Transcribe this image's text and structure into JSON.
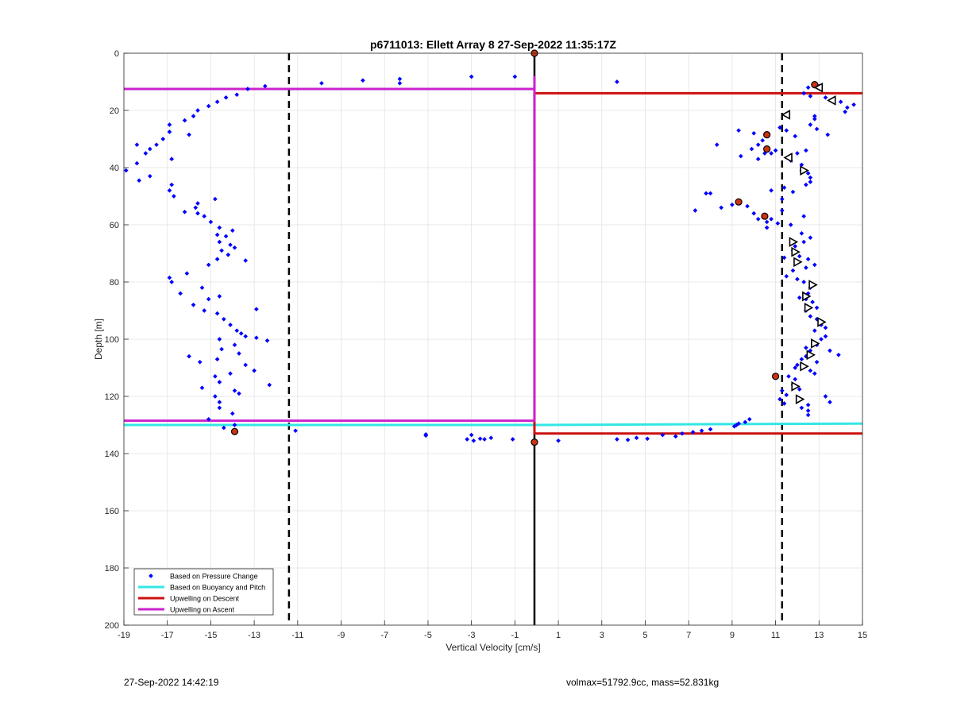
{
  "chart_data": {
    "type": "scatter",
    "title": "p6711013: Ellett Array 8 27-Sep-2022 11:35:17Z",
    "xlabel": "Vertical Velocity [cm/s]",
    "ylabel": "Depth [m]",
    "xlim": [
      -19,
      15
    ],
    "ylim": [
      0,
      200
    ],
    "y_reversed": true,
    "grid": true,
    "xticks": [
      -19,
      -17,
      -15,
      -13,
      -11,
      -9,
      -7,
      -5,
      -3,
      -1,
      1,
      3,
      5,
      7,
      9,
      11,
      13,
      15
    ],
    "yticks": [
      0,
      20,
      40,
      60,
      80,
      100,
      120,
      140,
      160,
      180,
      200
    ],
    "legend_position": "bottom-left",
    "colors": {
      "pressure": "#0000ff",
      "buoyancy": "#33e6e6",
      "descent": "#cc1111",
      "ascent": "#cc22cc",
      "reference": "#000000",
      "marker_fill": "#cc3311"
    },
    "legend": [
      {
        "label": "Based on Pressure Change",
        "style": "dot",
        "color": "#0000ff"
      },
      {
        "label": "Based on Buoyancy and Pitch",
        "style": "line",
        "color": "#33e6e6"
      },
      {
        "label": "Upwelling on Descent",
        "style": "line",
        "color": "#cc1111"
      },
      {
        "label": "Upwelling on Ascent",
        "style": "line",
        "color": "#cc22cc"
      }
    ],
    "reference_lines": [
      {
        "name": "center",
        "x": -0.1,
        "style": "solid"
      },
      {
        "name": "lower-bound",
        "x": -11.4,
        "style": "dashed"
      },
      {
        "name": "upper-bound",
        "x": 11.3,
        "style": "dashed"
      }
    ],
    "upwelling_ascent_path": [
      [
        -19,
        12.5
      ],
      [
        -0.1,
        12.5
      ],
      [
        -0.1,
        8
      ],
      [
        -0.1,
        14
      ],
      [
        -0.1,
        128.5
      ],
      [
        -19,
        128.5
      ]
    ],
    "upwelling_descent_path": [
      [
        -0.1,
        14
      ],
      [
        15,
        14
      ],
      [
        -0.1,
        14
      ],
      [
        -0.1,
        133
      ],
      [
        15,
        133
      ]
    ],
    "buoyancy_line": [
      [
        -19,
        130
      ],
      [
        -0.1,
        130
      ],
      [
        15,
        129.5
      ]
    ],
    "pressure_points": [
      [
        -12.5,
        11.5
      ],
      [
        -9.9,
        10.5
      ],
      [
        -8,
        9.5
      ],
      [
        -6.3,
        9
      ],
      [
        -6.3,
        10.5
      ],
      [
        -3,
        8.2
      ],
      [
        -1,
        8.2
      ],
      [
        3.7,
        10
      ],
      [
        -13.3,
        12.5
      ],
      [
        -14.3,
        15.5
      ],
      [
        -13.8,
        14.5
      ],
      [
        -14.7,
        17
      ],
      [
        -15.1,
        18.5
      ],
      [
        -15.6,
        20
      ],
      [
        -15.8,
        22
      ],
      [
        -16.2,
        23.5
      ],
      [
        -16,
        28.5
      ],
      [
        -16.9,
        25
      ],
      [
        -16.9,
        27.5
      ],
      [
        -17.2,
        30
      ],
      [
        -17.5,
        32
      ],
      [
        -17.8,
        33.5
      ],
      [
        -18,
        35
      ],
      [
        -18.4,
        32
      ],
      [
        -18.4,
        38.5
      ],
      [
        -16.8,
        37
      ],
      [
        -18.9,
        41
      ],
      [
        -17.8,
        43
      ],
      [
        -18.3,
        44.5
      ],
      [
        -16.8,
        46
      ],
      [
        -16.9,
        48
      ],
      [
        -16.7,
        50
      ],
      [
        -16.2,
        55.5
      ],
      [
        -15.6,
        52.5
      ],
      [
        -15.7,
        54
      ],
      [
        -14.8,
        51
      ],
      [
        -15.6,
        56
      ],
      [
        -15.3,
        57
      ],
      [
        -15.0,
        59
      ],
      [
        -14.6,
        61
      ],
      [
        -14.0,
        62
      ],
      [
        -14.7,
        63.5
      ],
      [
        -14.3,
        64
      ],
      [
        -14.6,
        66
      ],
      [
        -14.1,
        67
      ],
      [
        -13.9,
        68
      ],
      [
        -14.5,
        69
      ],
      [
        -14.2,
        70.5
      ],
      [
        -14.7,
        72
      ],
      [
        -13.4,
        72.5
      ],
      [
        -15.1,
        74
      ],
      [
        -16.1,
        77
      ],
      [
        -16.9,
        78.5
      ],
      [
        -16.8,
        80
      ],
      [
        -16.4,
        84
      ],
      [
        -15.4,
        82
      ],
      [
        -15.1,
        86
      ],
      [
        -14.6,
        85
      ],
      [
        -15.8,
        88
      ],
      [
        -15.3,
        90
      ],
      [
        -14.7,
        91
      ],
      [
        -12.9,
        89.5
      ],
      [
        -14.4,
        93
      ],
      [
        -14.1,
        95
      ],
      [
        -13.8,
        97
      ],
      [
        -13.6,
        98
      ],
      [
        -13.4,
        99
      ],
      [
        -14.6,
        100
      ],
      [
        -12.9,
        99.5
      ],
      [
        -12.4,
        100.5
      ],
      [
        -13.9,
        102
      ],
      [
        -14.5,
        103.5
      ],
      [
        -16.0,
        106
      ],
      [
        -15.5,
        108
      ],
      [
        -14.7,
        107
      ],
      [
        -13.7,
        105
      ],
      [
        -13.4,
        109
      ],
      [
        -14.1,
        112
      ],
      [
        -14.8,
        113
      ],
      [
        -13.0,
        111
      ],
      [
        -14.6,
        115
      ],
      [
        -15.4,
        117
      ],
      [
        -13.9,
        118
      ],
      [
        -12.3,
        116
      ],
      [
        -14.8,
        120
      ],
      [
        -13.7,
        119
      ],
      [
        -14.6,
        122
      ],
      [
        -14.6,
        124
      ],
      [
        -14.0,
        126
      ],
      [
        -15.1,
        128
      ],
      [
        -13.9,
        130
      ],
      [
        -14.4,
        131
      ],
      [
        -11.1,
        132
      ],
      [
        -5.1,
        133.3
      ],
      [
        -5.1,
        133.7
      ],
      [
        -3.0,
        133.5
      ],
      [
        -3.2,
        135
      ],
      [
        -2.9,
        135.5
      ],
      [
        -2.6,
        134.8
      ],
      [
        -2.4,
        135
      ],
      [
        -2.1,
        134.5
      ],
      [
        -1.1,
        135
      ],
      [
        1.0,
        135.5
      ],
      [
        3.7,
        135
      ],
      [
        4.2,
        135.2
      ],
      [
        4.6,
        134.5
      ],
      [
        5.1,
        134.8
      ],
      [
        5.8,
        133.5
      ],
      [
        6.4,
        134
      ],
      [
        6.7,
        133
      ],
      [
        7.2,
        132.5
      ],
      [
        7.6,
        132
      ],
      [
        8.0,
        131.5
      ],
      [
        9.1,
        130.5
      ],
      [
        9.3,
        129.5
      ],
      [
        9.6,
        129
      ],
      [
        9.8,
        128
      ],
      [
        9.2,
        130
      ],
      [
        12.8,
        10.5
      ],
      [
        13.0,
        11.5
      ],
      [
        12.5,
        12
      ],
      [
        12.3,
        14
      ],
      [
        12.6,
        15
      ],
      [
        13.3,
        15.5
      ],
      [
        14.0,
        17
      ],
      [
        14.3,
        19
      ],
      [
        14.6,
        18
      ],
      [
        14.2,
        20.5
      ],
      [
        12.8,
        22
      ],
      [
        12.8,
        23
      ],
      [
        12.6,
        25
      ],
      [
        12.9,
        26.5
      ],
      [
        11.2,
        26
      ],
      [
        11.5,
        27
      ],
      [
        9.3,
        27
      ],
      [
        10.0,
        28
      ],
      [
        11.9,
        29
      ],
      [
        13.4,
        28.5
      ],
      [
        8.3,
        32
      ],
      [
        10.4,
        30.5
      ],
      [
        10.2,
        32
      ],
      [
        9.9,
        33.5
      ],
      [
        10.5,
        35
      ],
      [
        10.8,
        35
      ],
      [
        11.0,
        34
      ],
      [
        9.4,
        36
      ],
      [
        10.2,
        37
      ],
      [
        12.0,
        35
      ],
      [
        12.4,
        34
      ],
      [
        11.7,
        37.5
      ],
      [
        12.2,
        39
      ],
      [
        12.2,
        41
      ],
      [
        12.5,
        42
      ],
      [
        12.6,
        43.5
      ],
      [
        12.6,
        45
      ],
      [
        11.4,
        47
      ],
      [
        12.4,
        46
      ],
      [
        10.8,
        48
      ],
      [
        11.8,
        48.5
      ],
      [
        8.0,
        49
      ],
      [
        7.8,
        49
      ],
      [
        7.3,
        55
      ],
      [
        8.5,
        54
      ],
      [
        9.0,
        53
      ],
      [
        9.7,
        53.5
      ],
      [
        10.0,
        56
      ],
      [
        10.2,
        58
      ],
      [
        10.6,
        59
      ],
      [
        10.8,
        58
      ],
      [
        11.1,
        59.5
      ],
      [
        10.6,
        61
      ],
      [
        11.3,
        51
      ],
      [
        11.3,
        55
      ],
      [
        12.3,
        57
      ],
      [
        11.7,
        60
      ],
      [
        12.2,
        63
      ],
      [
        12.6,
        64.5
      ],
      [
        12.3,
        66
      ],
      [
        11.9,
        67.5
      ],
      [
        11.8,
        69
      ],
      [
        11.4,
        71.5
      ],
      [
        12.1,
        71
      ],
      [
        12.5,
        72
      ],
      [
        12.4,
        75
      ],
      [
        12.8,
        74
      ],
      [
        11.8,
        76
      ],
      [
        11.5,
        78
      ],
      [
        12.0,
        79
      ],
      [
        12.3,
        80
      ],
      [
        12.6,
        82
      ],
      [
        12.5,
        84
      ],
      [
        12.1,
        85.5
      ],
      [
        12.4,
        86
      ],
      [
        12.7,
        87
      ],
      [
        12.9,
        89
      ],
      [
        12.4,
        90
      ],
      [
        12.6,
        92
      ],
      [
        12.9,
        93
      ],
      [
        13.1,
        95
      ],
      [
        13.3,
        96
      ],
      [
        12.8,
        97
      ],
      [
        13.3,
        99
      ],
      [
        13.1,
        100
      ],
      [
        12.9,
        102
      ],
      [
        12.4,
        103
      ],
      [
        12.6,
        104
      ],
      [
        13.5,
        104
      ],
      [
        13.9,
        105.5
      ],
      [
        12.4,
        106
      ],
      [
        12.2,
        107
      ],
      [
        12.9,
        108
      ],
      [
        12.0,
        109
      ],
      [
        11.9,
        110
      ],
      [
        12.6,
        111
      ],
      [
        12.8,
        112
      ],
      [
        11.6,
        113
      ],
      [
        11.9,
        114
      ],
      [
        11.8,
        116
      ],
      [
        12.1,
        117.5
      ],
      [
        11.3,
        118
      ],
      [
        11.5,
        119.5
      ],
      [
        13.3,
        120
      ],
      [
        11.2,
        121
      ],
      [
        13.5,
        122
      ],
      [
        12.5,
        123
      ],
      [
        12.2,
        124
      ],
      [
        12.5,
        125
      ],
      [
        12.5,
        126.5
      ],
      [
        11.4,
        122.5
      ]
    ],
    "highlight_points": [
      [
        12.8,
        11
      ],
      [
        10.6,
        28.5
      ],
      [
        10.6,
        33.5
      ],
      [
        9.3,
        52
      ],
      [
        10.5,
        57
      ],
      [
        11.0,
        113
      ],
      [
        -13.9,
        132.3
      ],
      [
        -0.1,
        0
      ],
      [
        -0.1,
        136
      ]
    ],
    "triangle_markers_left": [
      [
        13.0,
        12
      ],
      [
        13.6,
        16.5
      ],
      [
        11.5,
        21.5
      ],
      [
        11.6,
        36.5
      ]
    ],
    "triangle_markers_right": [
      [
        12.3,
        41
      ],
      [
        11.8,
        66
      ],
      [
        11.9,
        69.5
      ],
      [
        12.0,
        73
      ],
      [
        12.7,
        81
      ],
      [
        12.4,
        85
      ],
      [
        12.5,
        89
      ],
      [
        13.1,
        94
      ],
      [
        12.8,
        101.5
      ],
      [
        12.6,
        105.5
      ],
      [
        12.3,
        109.5
      ],
      [
        11.9,
        116.5
      ],
      [
        12.1,
        121
      ]
    ]
  },
  "footer": {
    "timestamp": "27-Sep-2022 14:42:19",
    "stats": "volmax=51792.9cc, mass=52.831kg"
  }
}
